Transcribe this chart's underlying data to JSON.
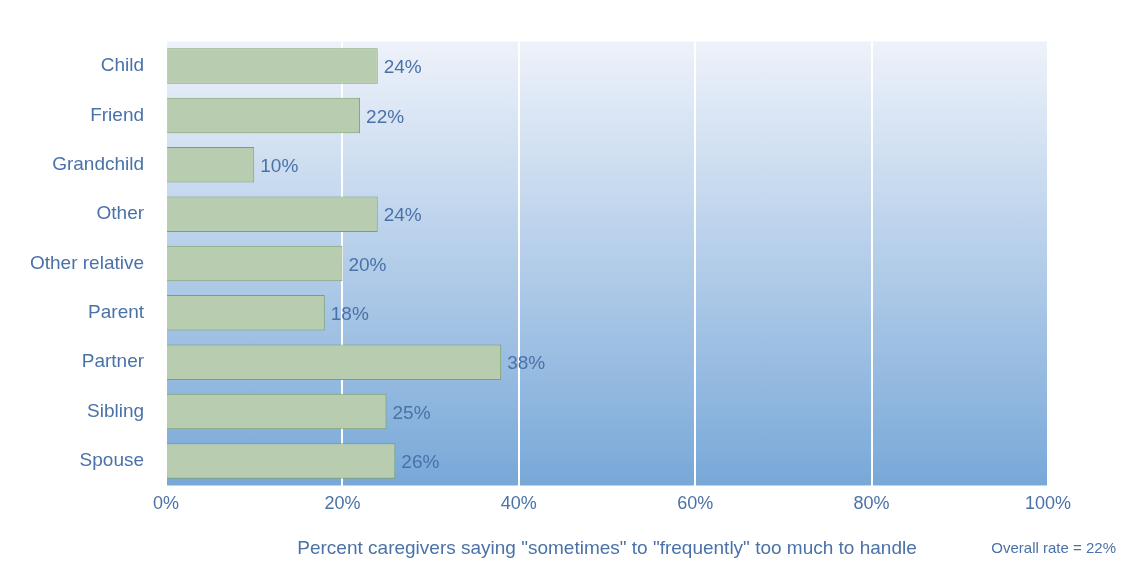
{
  "chart_data": {
    "type": "bar",
    "orientation": "horizontal",
    "xlabel": "Percent caregivers saying \"sometimes\" to \"frequently\" too much to handle",
    "categories": [
      "Child",
      "Friend",
      "Grandchild",
      "Other",
      "Other relative",
      "Parent",
      "Partner",
      "Sibling",
      "Spouse"
    ],
    "values": [
      24,
      22,
      10,
      24,
      20,
      18,
      38,
      25,
      26
    ],
    "color": "#b8cdb0",
    "value_labels": [
      "24%",
      "22%",
      "10%",
      "24%",
      "20%",
      "18%",
      "38%",
      "25%",
      "26%"
    ],
    "xlim": [
      0,
      100
    ],
    "xticks": [
      {
        "value": 0,
        "label": "0%"
      },
      {
        "value": 20,
        "label": "20%"
      },
      {
        "value": 40,
        "label": "40%"
      },
      {
        "value": 60,
        "label": "60%"
      },
      {
        "value": 80,
        "label": "80%"
      },
      {
        "value": 100,
        "label": "100%"
      }
    ],
    "grid": "x",
    "legend": false,
    "annotations": [
      "Overall rate = 22%"
    ]
  }
}
